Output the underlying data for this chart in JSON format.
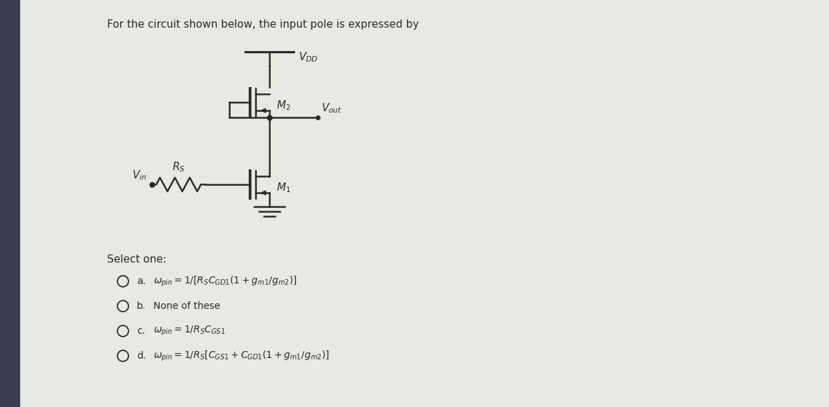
{
  "title": "For the circuit shown below, the input pole is expressed by",
  "bg_color": "#e8e8e2",
  "text_color": "#2a2a2a",
  "line_color": "#2a2a2a",
  "left_shadow_color": "#3a3a50",
  "options": [
    {
      "label": "a.",
      "formula": "$\\omega_{pin} = 1/[R_SC_{GD1}(1+g_{m1}/g_{m2})]$"
    },
    {
      "label": "b.",
      "formula": "None of these"
    },
    {
      "label": "c.",
      "formula": "$\\omega_{pin} = 1/R_SC_{GS1}$"
    },
    {
      "label": "d.",
      "formula": "$\\omega_{pin} = 1/R_S[C_{GS1}+C_{GD1}(1+g_{m1}/g_{m2})]$"
    }
  ],
  "select_one": "Select one:",
  "vdd_label": "$V_{DD}$",
  "vout_label": "$V_{out}$",
  "vin_label": "$V_{in}$",
  "rs_label": "$R_S$",
  "m1_label": "$M_1$",
  "m2_label": "$M_2$",
  "title_fontsize": 11,
  "option_fontsize": 10,
  "circuit_fontsize": 10
}
